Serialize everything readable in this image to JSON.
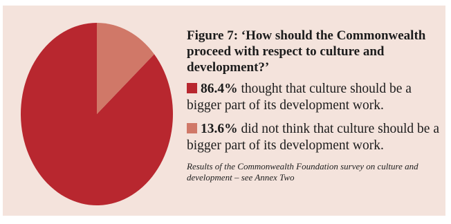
{
  "chart_data": {
    "type": "pie",
    "title": "Figure 7: ‘How should the Commonwealth proceed with respect to culture and development?’",
    "slices": [
      {
        "value": 86.4,
        "label": "86.4%",
        "text": "thought that culture should be a bigger part of its development work.",
        "color": "#b8272f"
      },
      {
        "value": 13.6,
        "label": "13.6%",
        "text": "did not think that culture should be a bigger part of its development work.",
        "color": "#d07868"
      }
    ],
    "caption": "Results of the Commonwealth Foundation survey on culture and development – see Annex Two",
    "legend_position": "right"
  },
  "colors": {
    "panel_background": "#f4e3dc"
  }
}
